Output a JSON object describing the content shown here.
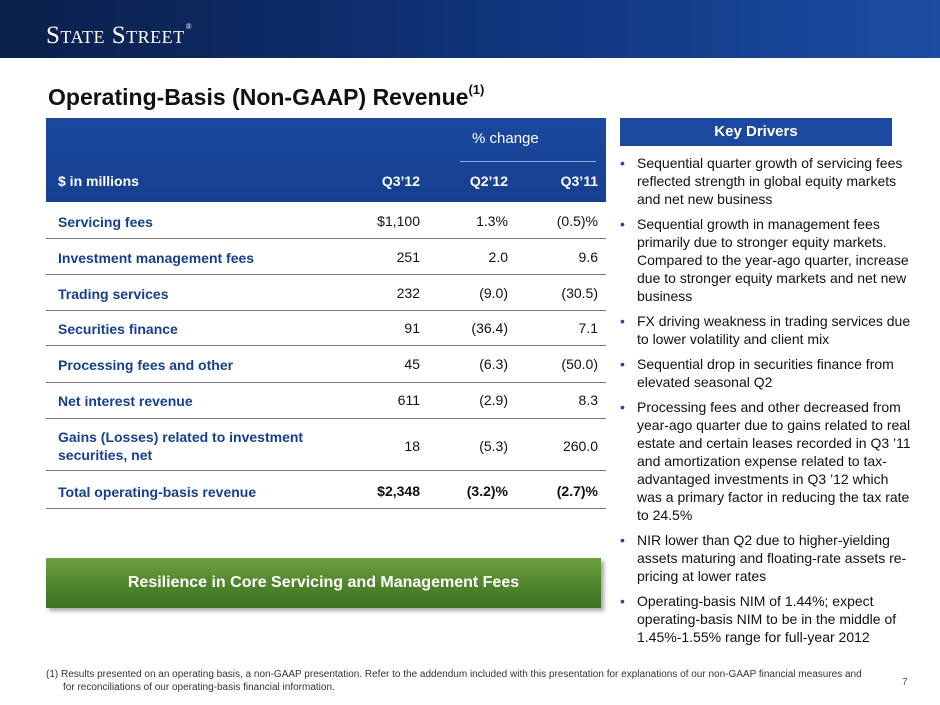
{
  "header": {
    "logo_text": "State Street",
    "logo_mark": "®"
  },
  "title": {
    "text": "Operating-Basis (Non-GAAP) Revenue",
    "superscript": "(1)"
  },
  "table": {
    "pct_change_label": "% change",
    "columns": {
      "label": "$ in millions",
      "c1": "Q3’12",
      "c2": "Q2’12",
      "c3": "Q3’11"
    },
    "rows": [
      {
        "label": "Servicing fees",
        "c1": "$1,100",
        "c2": "1.3%",
        "c3": "(0.5)%"
      },
      {
        "label": "Investment management fees",
        "c1": "251",
        "c2": "2.0",
        "c3": "9.6"
      },
      {
        "label": "Trading services",
        "c1": "232",
        "c2": "(9.0)",
        "c3": "(30.5)"
      },
      {
        "label": "Securities finance",
        "c1": "91",
        "c2": "(36.4)",
        "c3": "7.1"
      },
      {
        "label": "Processing fees and other",
        "c1": "45",
        "c2": "(6.3)",
        "c3": "(50.0)"
      },
      {
        "label": "Net interest revenue",
        "c1": "611",
        "c2": "(2.9)",
        "c3": "8.3"
      },
      {
        "label": "Gains (Losses) related to investment securities, net",
        "c1": "18",
        "c2": "(5.3)",
        "c3": "260.0"
      }
    ],
    "total": {
      "label": "Total operating-basis revenue",
      "c1": "$2,348",
      "c2": "(3.2)%",
      "c3": "(2.7)%"
    }
  },
  "banner": {
    "text": "Resilience in Core Servicing and Management Fees"
  },
  "key_drivers": {
    "title": "Key Drivers",
    "bullet_glyph": "•",
    "items": [
      "Sequential quarter growth of servicing fees reflected strength in global equity markets and net new business",
      "Sequential growth in management fees primarily due to stronger equity markets. Compared to the year-ago quarter, increase due to stronger equity markets and net new business",
      "FX driving weakness in trading services due to lower volatility and client mix",
      "Sequential drop in securities finance from elevated seasonal Q2",
      "Processing fees and other decreased from year-ago quarter due to gains related to real estate and certain leases recorded in Q3 ’11 and amortization expense related to tax-advantaged investments in Q3 ’12 which was a primary factor in reducing the tax rate to 24.5%",
      "NIR lower than Q2 due to higher-yielding assets maturing and floating-rate assets re-pricing at lower rates",
      "Operating-basis NIM of 1.44%; expect operating-basis NIM to be in the middle of 1.45%-1.55% range for full-year 2012"
    ]
  },
  "footnote": {
    "text": "(1) Results presented on an operating basis, a non-GAAP presentation. Refer to the addendum included with this presentation for explanations of our non-GAAP financial measures and for reconciliations of our operating-basis financial information."
  },
  "page_number": "7",
  "colors": {
    "brand_blue": "#1b49a0",
    "header_dark": "#0b1f4a",
    "banner_green": "#4f842a"
  }
}
